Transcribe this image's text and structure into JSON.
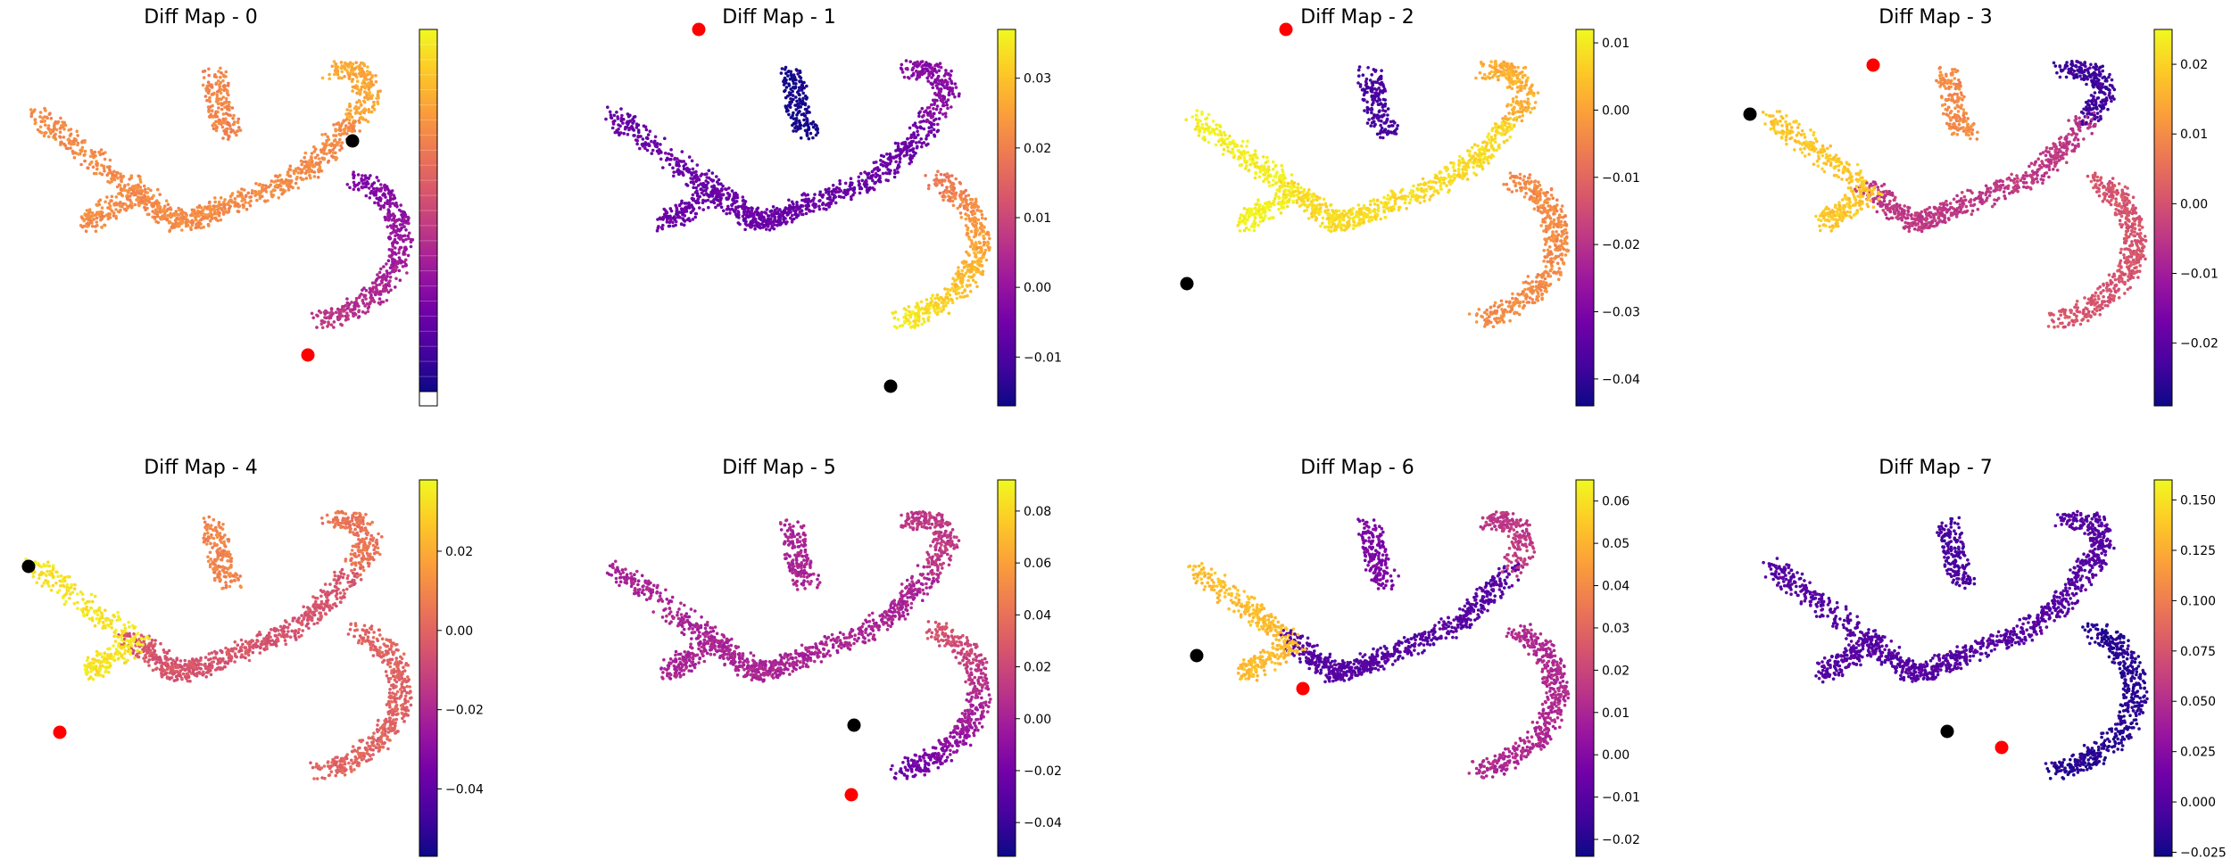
{
  "chart_data": [
    {
      "type": "scatter",
      "title": "Diff Map - 0",
      "colormap": "plasma",
      "colorbar_ticks": [],
      "black_marker": "right end of upper arm",
      "red_marker": "lower tip of right branch"
    },
    {
      "type": "scatter",
      "title": "Diff Map - 1",
      "colormap": "plasma",
      "colorbar_range": [
        -0.017,
        0.037
      ],
      "colorbar_ticks": [
        {
          "value": -0.01,
          "label": "−0.01"
        },
        {
          "value": 0.0,
          "label": "0.00"
        },
        {
          "value": 0.01,
          "label": "0.01"
        },
        {
          "value": 0.02,
          "label": "0.02"
        },
        {
          "value": 0.03,
          "label": "0.03"
        }
      ],
      "black_marker": "lower tip of right branch",
      "red_marker": "top of upper arm"
    },
    {
      "type": "scatter",
      "title": "Diff Map - 2",
      "colormap": "plasma",
      "colorbar_range": [
        -0.044,
        0.012
      ],
      "colorbar_ticks": [
        {
          "value": -0.04,
          "label": "−0.04"
        },
        {
          "value": -0.03,
          "label": "−0.03"
        },
        {
          "value": -0.02,
          "label": "−0.02"
        },
        {
          "value": -0.01,
          "label": "−0.01"
        },
        {
          "value": 0.0,
          "label": "0.00"
        },
        {
          "value": 0.01,
          "label": "0.01"
        }
      ],
      "black_marker": "lower-left tip",
      "red_marker": "top of upper arm"
    },
    {
      "type": "scatter",
      "title": "Diff Map - 3",
      "colormap": "plasma",
      "colorbar_range": [
        -0.029,
        0.025
      ],
      "colorbar_ticks": [
        {
          "value": -0.02,
          "label": "−0.02"
        },
        {
          "value": -0.01,
          "label": "−0.01"
        },
        {
          "value": 0.0,
          "label": "0.00"
        },
        {
          "value": 0.01,
          "label": "0.01"
        },
        {
          "value": 0.02,
          "label": "0.02"
        }
      ],
      "black_marker": "upper-left tip",
      "red_marker": "start of right arm"
    },
    {
      "type": "scatter",
      "title": "Diff Map - 4",
      "colormap": "plasma",
      "colorbar_range": [
        -0.057,
        0.038
      ],
      "colorbar_ticks": [
        {
          "value": -0.04,
          "label": "−0.04"
        },
        {
          "value": -0.02,
          "label": "−0.02"
        },
        {
          "value": 0.0,
          "label": "0.00"
        },
        {
          "value": 0.02,
          "label": "0.02"
        }
      ],
      "black_marker": "upper-left tip",
      "red_marker": "lower-left branch"
    },
    {
      "type": "scatter",
      "title": "Diff Map - 5",
      "colormap": "plasma",
      "colorbar_range": [
        -0.053,
        0.092
      ],
      "colorbar_ticks": [
        {
          "value": -0.04,
          "label": "−0.04"
        },
        {
          "value": -0.02,
          "label": "−0.02"
        },
        {
          "value": 0.0,
          "label": "0.00"
        },
        {
          "value": 0.02,
          "label": "0.02"
        },
        {
          "value": 0.04,
          "label": "0.04"
        },
        {
          "value": 0.06,
          "label": "0.06"
        },
        {
          "value": 0.08,
          "label": "0.08"
        }
      ],
      "black_marker": "middle of right branch",
      "red_marker": "lower tip of right branch"
    },
    {
      "type": "scatter",
      "title": "Diff Map - 6",
      "colormap": "plasma",
      "colorbar_range": [
        -0.024,
        0.065
      ],
      "colorbar_ticks": [
        {
          "value": -0.02,
          "label": "−0.02"
        },
        {
          "value": -0.01,
          "label": "−0.01"
        },
        {
          "value": 0.0,
          "label": "0.00"
        },
        {
          "value": 0.01,
          "label": "0.01"
        },
        {
          "value": 0.02,
          "label": "0.02"
        },
        {
          "value": 0.03,
          "label": "0.03"
        },
        {
          "value": 0.04,
          "label": "0.04"
        },
        {
          "value": 0.05,
          "label": "0.05"
        },
        {
          "value": 0.06,
          "label": "0.06"
        }
      ],
      "black_marker": "lower-left tip",
      "red_marker": "center of main body"
    },
    {
      "type": "scatter",
      "title": "Diff Map - 7",
      "colormap": "plasma",
      "colorbar_range": [
        -0.027,
        0.16
      ],
      "colorbar_ticks": [
        {
          "value": -0.025,
          "label": "−0.025"
        },
        {
          "value": 0.0,
          "label": "0.000"
        },
        {
          "value": 0.025,
          "label": "0.025"
        },
        {
          "value": 0.05,
          "label": "0.050"
        },
        {
          "value": 0.075,
          "label": "0.075"
        },
        {
          "value": 0.1,
          "label": "0.100"
        },
        {
          "value": 0.125,
          "label": "0.125"
        },
        {
          "value": 0.15,
          "label": "0.150"
        }
      ],
      "black_marker": "middle of right branch",
      "red_marker": "middle of right branch"
    }
  ],
  "colors": {
    "plasma": [
      "#0d0887",
      "#46039f",
      "#7201a8",
      "#9c179e",
      "#bd3786",
      "#d8576b",
      "#ed7953",
      "#fb9f3a",
      "#fdca26",
      "#f0f921"
    ],
    "black_marker": "#000000",
    "red_marker": "#ff0000"
  }
}
